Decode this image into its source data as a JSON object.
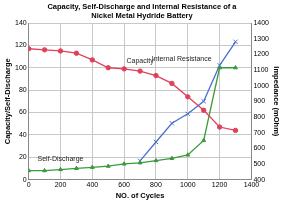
{
  "chart_data": {
    "type": "line",
    "title": [
      "Capacity, Self-Discharge and Internal Resistance of a",
      "Nickel Metal Hydride Battery"
    ],
    "x_label": "NO. of Cycles",
    "y_label": "Capacity/Self-Discharge",
    "y2_label": "Impedance (mOhm)",
    "x": [
      0,
      100,
      200,
      300,
      400,
      500,
      600,
      700,
      800,
      900,
      1000,
      1100,
      1200,
      1300
    ],
    "series": [
      {
        "name": "Capacity",
        "color": "#e0405a",
        "marker": "circle",
        "values": [
          117,
          116,
          115,
          113,
          107,
          100,
          99,
          97,
          93,
          86,
          74,
          62,
          47,
          44
        ]
      },
      {
        "name": "Self-Discharge",
        "color": "#3a9a3a",
        "marker": "triangle",
        "values": [
          8,
          8,
          9,
          10,
          11,
          12,
          14,
          15,
          17,
          19,
          22,
          35,
          100,
          100
        ]
      },
      {
        "name": "Internal Resistance",
        "color": "#4a6fd0",
        "marker": "x",
        "axis": "y2",
        "values": [
          null,
          null,
          null,
          null,
          null,
          null,
          null,
          520,
          640,
          760,
          820,
          900,
          1130,
          1280
        ]
      }
    ],
    "xlim": [
      0,
      1400
    ],
    "xticks": [
      0,
      200,
      400,
      600,
      800,
      1000,
      1200,
      1400
    ],
    "ylim": [
      0,
      140
    ],
    "yticks": [
      0,
      20,
      40,
      60,
      80,
      100,
      120,
      140
    ],
    "y2lim": [
      400,
      1400
    ],
    "y2ticks": [
      400,
      500,
      600,
      700,
      800,
      900,
      1000,
      1100,
      1200,
      1300,
      1400
    ],
    "grid": true
  }
}
